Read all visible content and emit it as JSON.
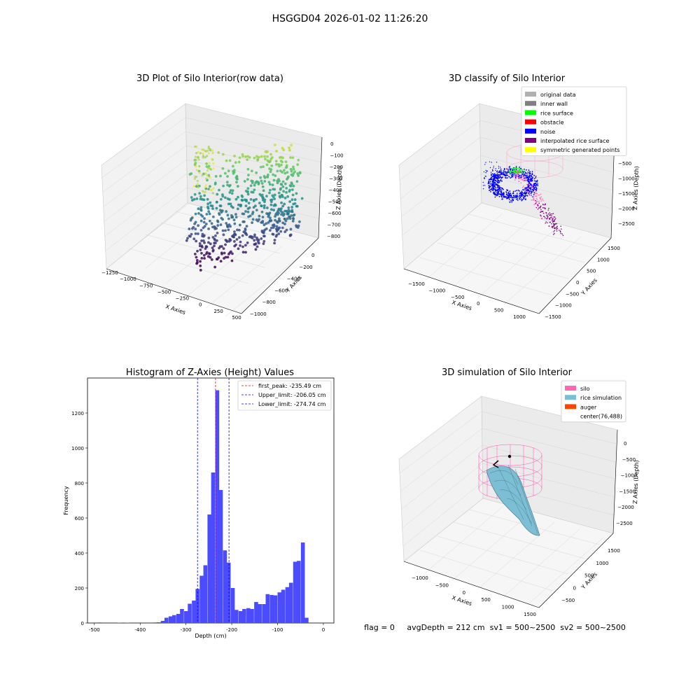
{
  "suptitle": "HSGGD04 2026-01-02 11:26:20",
  "footer": "flag = 0     avgDepth = 212 cm  sv1 = 500~2500  sv2 = 500~2500",
  "colors": {
    "histogram": "#4b4bff",
    "first_peak_line": "#ff0000",
    "limit_lines": "#0000ff",
    "silo": "#ff69b4",
    "rice": "#7cbed4",
    "auger": "#ff4500"
  },
  "chart_data": [
    {
      "type": "scatter3d",
      "title": "3D Plot of Silo Interior(row data)",
      "xlabel": "X Axies",
      "ylabel": "Y Axies",
      "zlabel": "Z Axies (Depth)",
      "xticks": [
        "−1250",
        "−1000",
        "−750",
        "−500",
        "−250",
        "0",
        "250",
        "500"
      ],
      "yticks": [
        "0",
        "−200",
        "−400",
        "−600",
        "−800",
        "−1000"
      ],
      "zticks": [
        "0",
        "−100",
        "−200",
        "−300",
        "−400",
        "−500",
        "−600",
        "−700",
        "−800"
      ],
      "colormap": "viridis"
    },
    {
      "type": "scatter3d",
      "title": "3D classify of Silo Interior",
      "xlabel": "X Axies",
      "ylabel": "Y Axies",
      "zlabel": "Z Axies (Depth)",
      "xticks": [
        "−1500",
        "−1000",
        "−500",
        "0",
        "500",
        "1000"
      ],
      "yticks": [
        "1500",
        "1000",
        "500",
        "0",
        "−500",
        "−1000",
        "−1500"
      ],
      "zticks": [
        "−500",
        "−1000",
        "−1500",
        "−2000",
        "−2500"
      ],
      "legend": [
        {
          "label": "original data",
          "color": "#b0b0b0"
        },
        {
          "label": "inner wall",
          "color": "#808080"
        },
        {
          "label": "rice surface",
          "color": "#00ff00"
        },
        {
          "label": "obstacle",
          "color": "#ff0000"
        },
        {
          "label": "noise",
          "color": "#0000ff"
        },
        {
          "label": "interpolated rice surface",
          "color": "#800080"
        },
        {
          "label": "symmetric generated points",
          "color": "#ffff00"
        }
      ]
    },
    {
      "type": "bar",
      "title": "Histogram of Z-Axies (Height) Values",
      "xlabel": "Depth (cm)",
      "ylabel": "Frequency",
      "xlim": [
        -515,
        23
      ],
      "ylim": [
        0,
        1400
      ],
      "xticks": [
        -500,
        -400,
        -300,
        -200,
        -100,
        0
      ],
      "yticks": [
        0,
        200,
        400,
        600,
        800,
        1000,
        1200
      ],
      "bin_width": 8.5,
      "bins": [
        [
          -492,
          3
        ],
        [
          -449,
          2
        ],
        [
          -432,
          2
        ],
        [
          -372,
          3
        ],
        [
          -364,
          4
        ],
        [
          -355,
          12
        ],
        [
          -347,
          30
        ],
        [
          -338,
          38
        ],
        [
          -330,
          45
        ],
        [
          -321,
          52
        ],
        [
          -313,
          80
        ],
        [
          -304,
          68
        ],
        [
          -296,
          110
        ],
        [
          -287,
          128
        ],
        [
          -279,
          195
        ],
        [
          -270,
          270
        ],
        [
          -262,
          330
        ],
        [
          -253,
          620
        ],
        [
          -245,
          860
        ],
        [
          -236,
          1330
        ],
        [
          -228,
          760
        ],
        [
          -219,
          415
        ],
        [
          -211,
          345
        ],
        [
          -202,
          200
        ],
        [
          -194,
          75
        ],
        [
          -185,
          68
        ],
        [
          -177,
          80
        ],
        [
          -168,
          85
        ],
        [
          -160,
          80
        ],
        [
          -151,
          120
        ],
        [
          -143,
          108
        ],
        [
          -134,
          108
        ],
        [
          -126,
          165
        ],
        [
          -117,
          160
        ],
        [
          -109,
          158
        ],
        [
          -100,
          175
        ],
        [
          -92,
          190
        ],
        [
          -83,
          205
        ],
        [
          -75,
          230
        ],
        [
          -66,
          350
        ],
        [
          -58,
          355
        ],
        [
          -49,
          460
        ],
        [
          -41,
          30
        ]
      ],
      "vlines": [
        {
          "label": "first_peak: -235.49 cm",
          "x": -235.49,
          "color": "#ff0000"
        },
        {
          "label": "Upper_limit: -206.05 cm",
          "x": -206.05,
          "color": "#0000ff"
        },
        {
          "label": "Lower_limit: -274.74 cm",
          "x": -274.74,
          "color": "#0000ff"
        }
      ]
    },
    {
      "type": "surface3d",
      "title": "3D simulation of Silo Interior",
      "xlabel": "X Axies",
      "ylabel": "Y Axies",
      "zlabel": "Z Axies (Depth)",
      "xticks": [
        "−1000",
        "−500",
        "0",
        "500",
        "1000",
        "1500"
      ],
      "yticks": [
        "1500",
        "1000",
        "500",
        "0",
        "−500"
      ],
      "zticks": [
        "0",
        "−500",
        "−1000",
        "−1500",
        "−2000",
        "−2500"
      ],
      "legend": [
        {
          "label": "silo",
          "color": "#ff69b4"
        },
        {
          "label": "rice simulation",
          "color": "#7cbed4"
        },
        {
          "label": "auger",
          "color": "#ff4500"
        },
        {
          "label": "center(76,488)",
          "color": ""
        }
      ]
    }
  ]
}
